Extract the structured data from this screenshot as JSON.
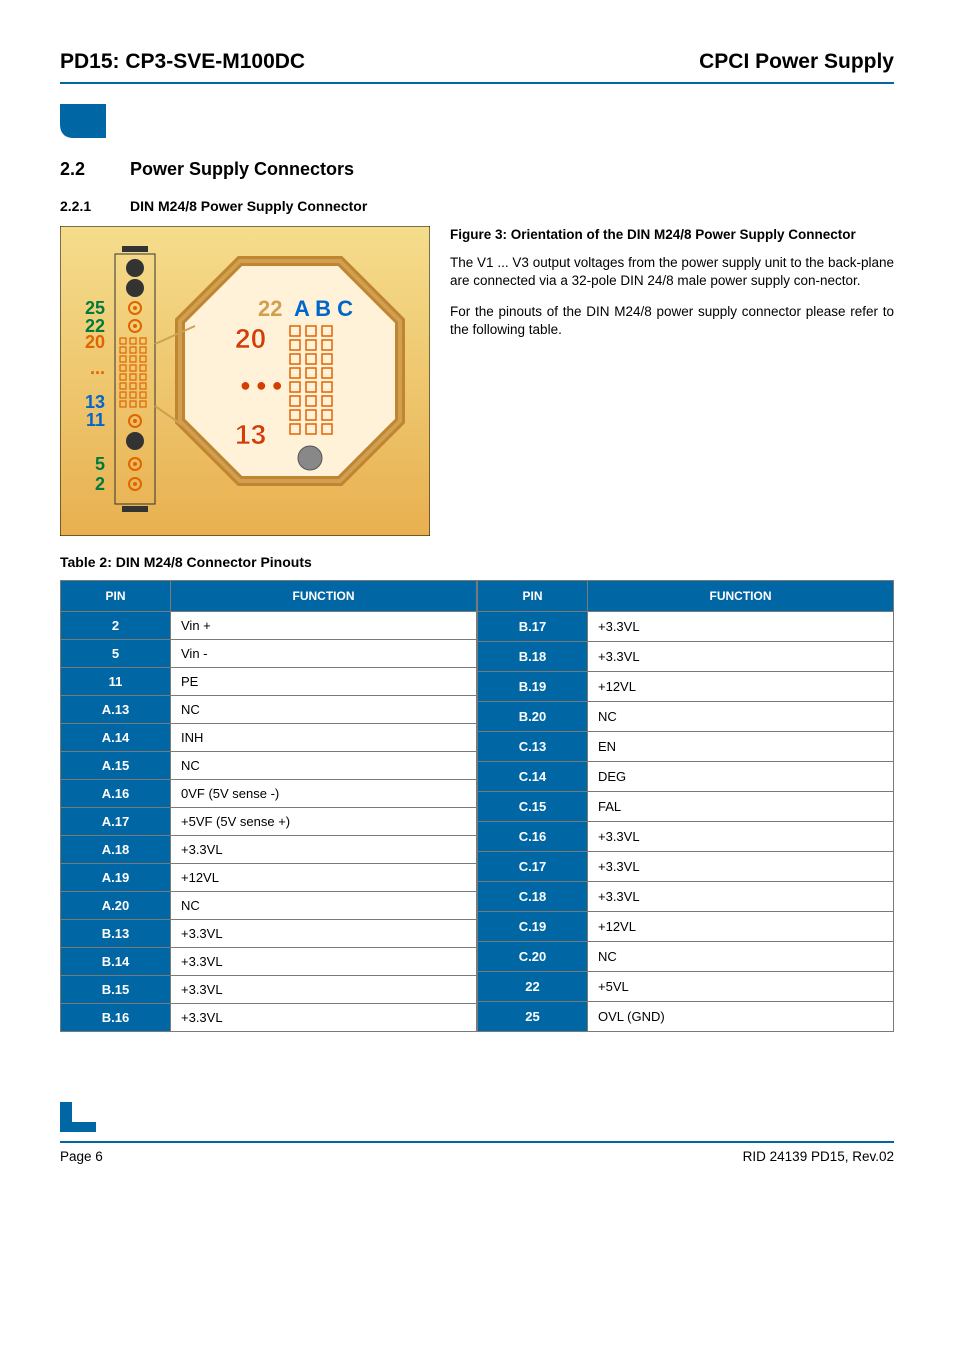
{
  "header": {
    "left": "PD15: CP3-SVE-M100DC",
    "right": "CPCI Power Supply"
  },
  "section": {
    "num": "2.2",
    "title": "Power Supply Connectors"
  },
  "subsection": {
    "num": "2.2.1",
    "title": "DIN M24/8 Power Supply Connector"
  },
  "figure": {
    "caption": "Figure 3: Orientation of the DIN M24/8 Power Supply Connector",
    "para1": "The V1 ... V3 output voltages from the power supply unit to the back-plane are connected via a 32-pole DIN 24/8 male power supply con-nector.",
    "para2": "For the pinouts of the DIN M24/8 power supply connector please refer to the following table.",
    "row_labels": [
      "25",
      "22",
      "20",
      "...",
      "13",
      "11",
      "5",
      "2"
    ],
    "row_colors": [
      "#007a3d",
      "#007a3d",
      "#e06500",
      "#e06500",
      "#0066cc",
      "#0066cc",
      "#007a3d",
      "#007a3d"
    ],
    "detail_cols": "A B C",
    "detail_top": "22",
    "detail_mid": "20",
    "detail_bottom": "13",
    "bg_gradient_top": "#f5dd8d",
    "bg_gradient_bottom": "#e8b050",
    "octagon_fill": "#fff2d9",
    "octagon_stroke": "#c08530",
    "frame_stroke": "#d0a050"
  },
  "table": {
    "caption": "Table 2: DIN M24/8 Connector Pinouts",
    "headers": [
      "PIN",
      "FUNCTION",
      "PIN",
      "FUNCTION"
    ],
    "left": [
      {
        "pin": "2",
        "func": "Vin +"
      },
      {
        "pin": "5",
        "func": "Vin -"
      },
      {
        "pin": "11",
        "func": "PE"
      },
      {
        "pin": "A.13",
        "func": "NC"
      },
      {
        "pin": "A.14",
        "func": "INH"
      },
      {
        "pin": "A.15",
        "func": "NC"
      },
      {
        "pin": "A.16",
        "func": "0VF (5V sense -)"
      },
      {
        "pin": "A.17",
        "func": "+5VF (5V sense +)"
      },
      {
        "pin": "A.18",
        "func": "+3.3VL"
      },
      {
        "pin": "A.19",
        "func": "+12VL"
      },
      {
        "pin": "A.20",
        "func": "NC"
      },
      {
        "pin": "B.13",
        "func": "+3.3VL"
      },
      {
        "pin": "B.14",
        "func": "+3.3VL"
      },
      {
        "pin": "B.15",
        "func": "+3.3VL"
      },
      {
        "pin": "B.16",
        "func": "+3.3VL"
      }
    ],
    "right": [
      {
        "pin": "B.17",
        "func": "+3.3VL"
      },
      {
        "pin": "B.18",
        "func": "+3.3VL"
      },
      {
        "pin": "B.19",
        "func": "+12VL"
      },
      {
        "pin": "B.20",
        "func": "NC"
      },
      {
        "pin": "C.13",
        "func": "EN"
      },
      {
        "pin": "C.14",
        "func": "DEG"
      },
      {
        "pin": "C.15",
        "func": "FAL"
      },
      {
        "pin": "C.16",
        "func": "+3.3VL"
      },
      {
        "pin": "C.17",
        "func": "+3.3VL"
      },
      {
        "pin": "C.18",
        "func": "+3.3VL"
      },
      {
        "pin": "C.19",
        "func": "+12VL"
      },
      {
        "pin": "C.20",
        "func": "NC"
      },
      {
        "pin": "22",
        "func": "+5VL"
      },
      {
        "pin": "25",
        "func": "OVL (GND)"
      }
    ]
  },
  "footer": {
    "left": "Page 6",
    "right": "RID 24139 PD15, Rev.02"
  },
  "colors": {
    "blue": "#0066a4"
  }
}
